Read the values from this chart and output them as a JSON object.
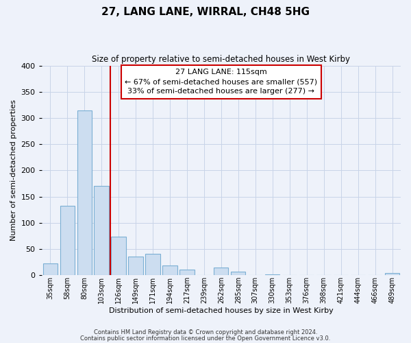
{
  "title": "27, LANG LANE, WIRRAL, CH48 5HG",
  "subtitle": "Size of property relative to semi-detached houses in West Kirby",
  "xlabel": "Distribution of semi-detached houses by size in West Kirby",
  "ylabel": "Number of semi-detached properties",
  "footer_line1": "Contains HM Land Registry data © Crown copyright and database right 2024.",
  "footer_line2": "Contains public sector information licensed under the Open Government Licence v3.0.",
  "annotation_title": "27 LANG LANE: 115sqm",
  "annotation_line1": "← 67% of semi-detached houses are smaller (557)",
  "annotation_line2": "33% of semi-detached houses are larger (277) →",
  "bar_labels": [
    "35sqm",
    "58sqm",
    "80sqm",
    "103sqm",
    "126sqm",
    "149sqm",
    "171sqm",
    "194sqm",
    "217sqm",
    "239sqm",
    "262sqm",
    "285sqm",
    "307sqm",
    "330sqm",
    "353sqm",
    "376sqm",
    "398sqm",
    "421sqm",
    "444sqm",
    "466sqm",
    "489sqm"
  ],
  "bar_values": [
    22,
    133,
    315,
    170,
    73,
    35,
    41,
    18,
    11,
    0,
    14,
    7,
    0,
    2,
    0,
    0,
    0,
    0,
    0,
    0,
    4
  ],
  "bar_color": "#ccddf0",
  "bar_edge_color": "#7bafd4",
  "vline_x": 3.5,
  "vline_color": "#cc0000",
  "ylim": [
    0,
    400
  ],
  "yticks": [
    0,
    50,
    100,
    150,
    200,
    250,
    300,
    350,
    400
  ],
  "annotation_box_color": "#ffffff",
  "annotation_box_edge": "#cc0000",
  "bg_color": "#eef2fa",
  "grid_color": "#c8d4e8"
}
